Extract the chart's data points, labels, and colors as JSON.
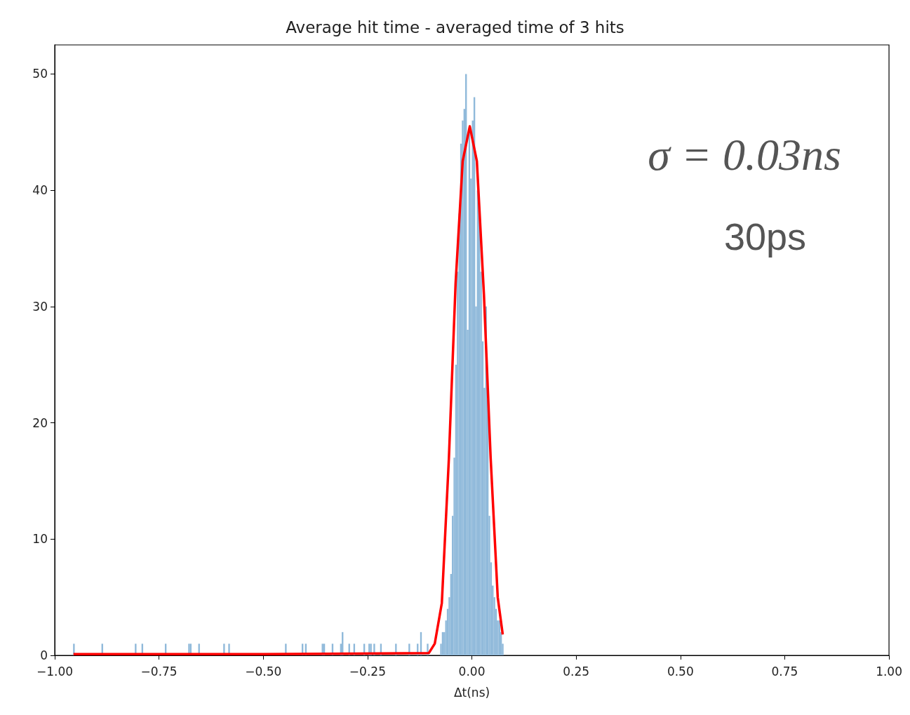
{
  "chart_data": {
    "type": "histogram",
    "title": "Average hit time - averaged time of 3 hits",
    "xlabel": "Δt(ns)",
    "bins": [
      -0.956,
      -0.952,
      -0.888,
      -0.884,
      -0.808,
      -0.804,
      -0.792,
      -0.788,
      -0.736,
      -0.732,
      -0.68,
      -0.676,
      -0.672,
      -0.656,
      -0.652,
      -0.596,
      -0.592,
      -0.584,
      -0.58,
      -0.448,
      -0.444,
      -0.408,
      -0.404,
      -0.4,
      -0.396,
      -0.36,
      -0.356,
      -0.352,
      -0.336,
      -0.332,
      -0.316,
      -0.312,
      -0.308,
      -0.296,
      -0.292,
      -0.284,
      -0.28,
      -0.26,
      -0.256,
      -0.248,
      -0.244,
      -0.24,
      -0.236,
      -0.232,
      -0.22,
      -0.216,
      -0.184,
      -0.18,
      -0.152,
      -0.148,
      -0.132,
      -0.128,
      -0.124,
      -0.12,
      -0.108,
      -0.104,
      -0.076,
      -0.072,
      -0.068,
      -0.064,
      -0.06,
      -0.056,
      -0.052,
      -0.048,
      -0.044,
      -0.04,
      -0.036,
      -0.032,
      -0.028,
      -0.024,
      -0.02,
      -0.016,
      -0.012,
      -0.008,
      -0.004,
      0,
      0.004,
      0.008,
      0.012,
      0.016,
      0.02,
      0.024,
      0.028,
      0.032,
      0.036,
      0.04,
      0.044,
      0.048,
      0.052,
      0.056,
      0.06,
      0.064,
      0.068,
      0.072,
      0.076
    ],
    "series": [
      {
        "color": "#8fb9da",
        "values": [
          1,
          0,
          1,
          0,
          1,
          0,
          1,
          0,
          1,
          0,
          1,
          1,
          0,
          1,
          0,
          1,
          0,
          1,
          0,
          1,
          0,
          1,
          0,
          1,
          0,
          1,
          1,
          0,
          1,
          0,
          1,
          2,
          0,
          1,
          0,
          1,
          0,
          1,
          0,
          1,
          1,
          0,
          1,
          0,
          1,
          0,
          1,
          0,
          1,
          0,
          1,
          0,
          2,
          0,
          1,
          0,
          1,
          2,
          2,
          3,
          4,
          5,
          7,
          12,
          17,
          25,
          33,
          38,
          44,
          46,
          47,
          50,
          28,
          45,
          41,
          46,
          48,
          30,
          40,
          38,
          33,
          27,
          23,
          30,
          22,
          12,
          8,
          6,
          5,
          4,
          3,
          3,
          2,
          1
        ]
      },
      {
        "type": "line",
        "color": "#ff0000",
        "x": [
          -0.955,
          -0.5,
          -0.103,
          -0.089,
          -0.072,
          -0.055,
          -0.039,
          -0.022,
          -0.005,
          0.012,
          0.029,
          0.045,
          0.062,
          0.074
        ],
        "values": [
          0.1,
          0.1,
          0.2,
          1,
          4.5,
          17,
          32,
          42.5,
          45.5,
          42.5,
          31,
          17,
          5,
          1.8
        ]
      }
    ],
    "xlim": [
      -1,
      1
    ],
    "ylim": [
      0,
      52.5
    ],
    "xticks": [
      {
        "value": -1,
        "label": "−1.00"
      },
      {
        "value": -0.75,
        "label": "−0.75"
      },
      {
        "value": -0.5,
        "label": "−0.50"
      },
      {
        "value": -0.25,
        "label": "−0.25"
      },
      {
        "value": 0,
        "label": "0.00"
      },
      {
        "value": 0.25,
        "label": "0.25"
      },
      {
        "value": 0.5,
        "label": "0.50"
      },
      {
        "value": 0.75,
        "label": "0.75"
      },
      {
        "value": 1,
        "label": "1.00"
      }
    ],
    "yticks": [
      0,
      10,
      20,
      30,
      40,
      50
    ],
    "annotations": [
      "σ = 0.03ns",
      "30ps"
    ],
    "grid": false
  }
}
